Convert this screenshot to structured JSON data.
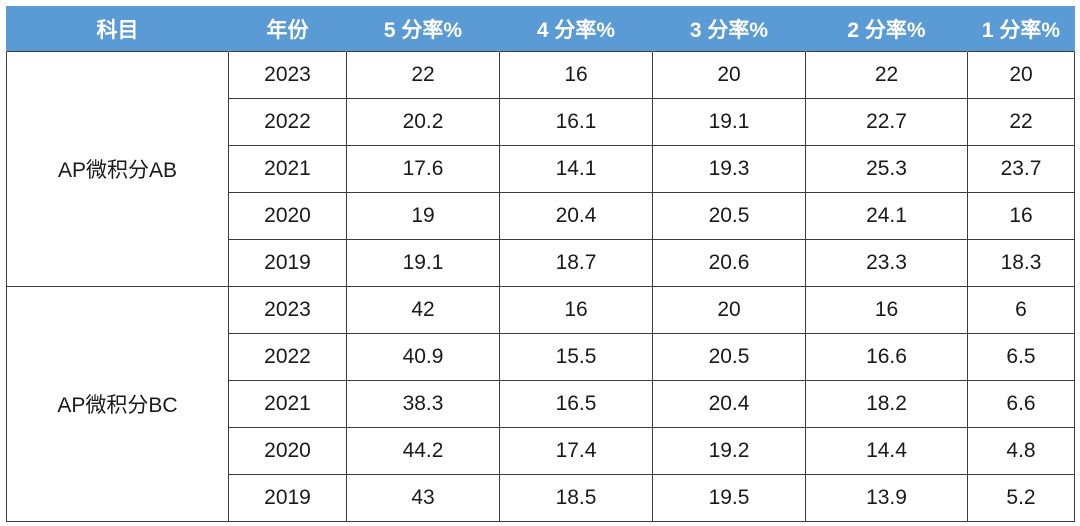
{
  "headers": [
    "科目",
    "年份",
    "5 分率%",
    "4 分率%",
    "3 分率%",
    "2 分率%",
    "1 分率%"
  ],
  "groups": [
    {
      "subject": "AP微积分AB",
      "rows": [
        [
          "2023",
          "22",
          "16",
          "20",
          "22",
          "20"
        ],
        [
          "2022",
          "20.2",
          "16.1",
          "19.1",
          "22.7",
          "22"
        ],
        [
          "2021",
          "17.6",
          "14.1",
          "19.3",
          "25.3",
          "23.7"
        ],
        [
          "2020",
          "19",
          "20.4",
          "20.5",
          "24.1",
          "16"
        ],
        [
          "2019",
          "19.1",
          "18.7",
          "20.6",
          "23.3",
          "18.3"
        ]
      ]
    },
    {
      "subject": "AP微积分BC",
      "rows": [
        [
          "2023",
          "42",
          "16",
          "20",
          "16",
          "6"
        ],
        [
          "2022",
          "40.9",
          "15.5",
          "20.5",
          "16.6",
          "6.5"
        ],
        [
          "2021",
          "38.3",
          "16.5",
          "20.4",
          "18.2",
          "6.6"
        ],
        [
          "2020",
          "44.2",
          "17.4",
          "19.2",
          "14.4",
          "4.8"
        ],
        [
          "2019",
          "43",
          "18.5",
          "19.5",
          "13.9",
          "5.2"
        ]
      ]
    }
  ],
  "colors": {
    "header_bg": "#5b9bd5",
    "header_text": "#ffffff",
    "border": "#3c3c3c"
  }
}
